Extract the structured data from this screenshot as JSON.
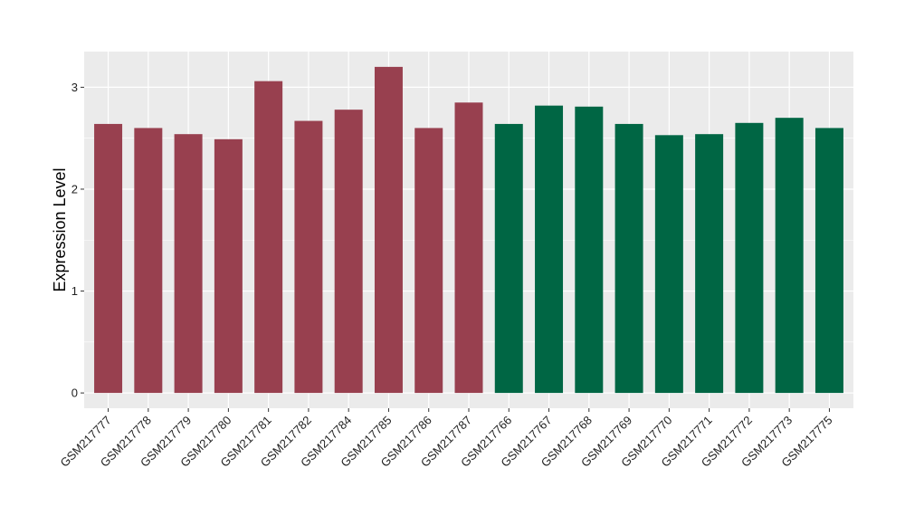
{
  "chart_data": {
    "type": "bar",
    "title": "",
    "xlabel": "",
    "ylabel": "Expression Level",
    "ylim": [
      -0.15,
      3.35
    ],
    "yticks": [
      0,
      1,
      2,
      3
    ],
    "grid": true,
    "background": "#EBEBEB",
    "categories": [
      "GSM217777",
      "GSM217778",
      "GSM217779",
      "GSM217780",
      "GSM217781",
      "GSM217782",
      "GSM217784",
      "GSM217785",
      "GSM217786",
      "GSM217787",
      "GSM217766",
      "GSM217767",
      "GSM217768",
      "GSM217769",
      "GSM217770",
      "GSM217771",
      "GSM217772",
      "GSM217773",
      "GSM217775"
    ],
    "values": [
      2.64,
      2.6,
      2.54,
      2.49,
      3.06,
      2.67,
      2.78,
      3.2,
      2.6,
      2.85,
      2.64,
      2.82,
      2.81,
      2.64,
      2.53,
      2.54,
      2.65,
      2.7,
      2.6
    ],
    "bar_colors": [
      "#98404F",
      "#98404F",
      "#98404F",
      "#98404F",
      "#98404F",
      "#98404F",
      "#98404F",
      "#98404F",
      "#98404F",
      "#98404F",
      "#006644",
      "#006644",
      "#006644",
      "#006644",
      "#006644",
      "#006644",
      "#006644",
      "#006644",
      "#006644"
    ]
  }
}
